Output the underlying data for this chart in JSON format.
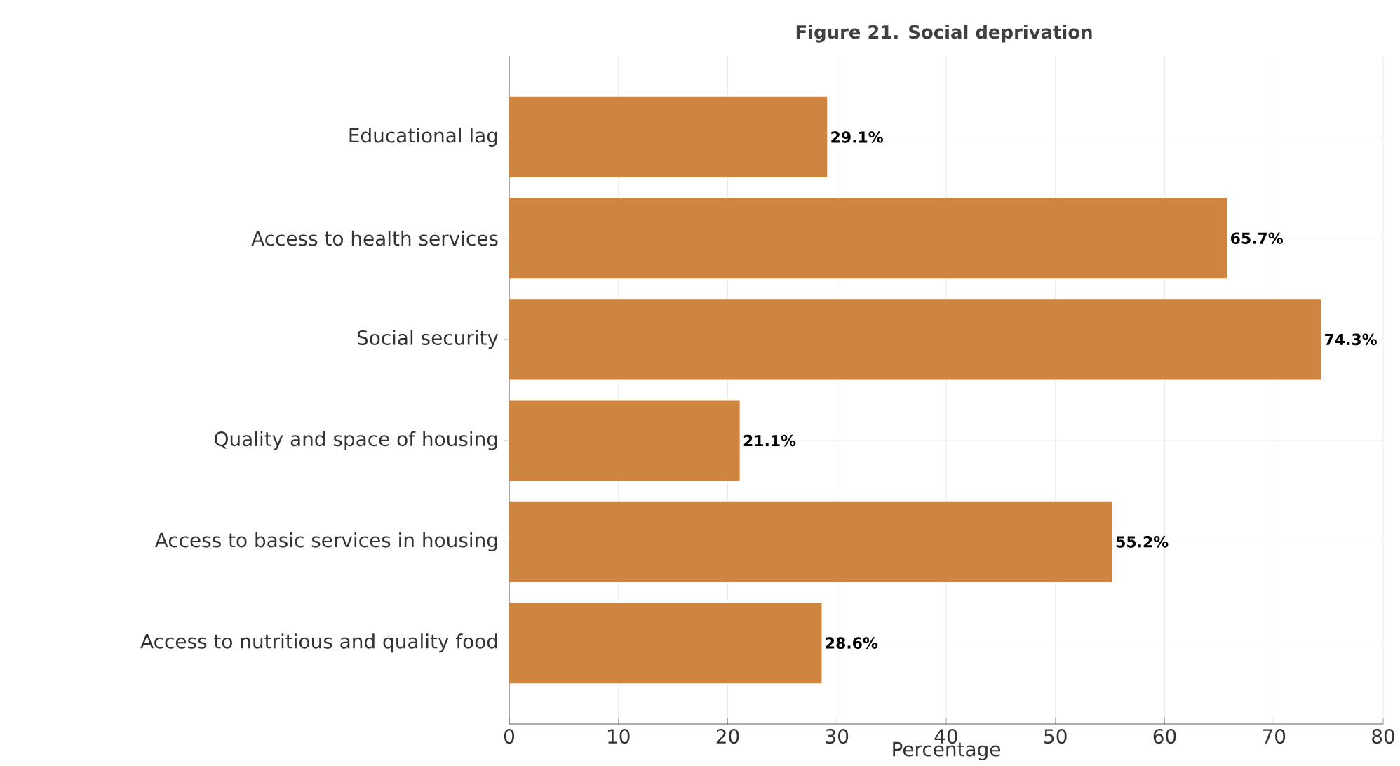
{
  "chart_data": {
    "type": "bar",
    "orientation": "horizontal",
    "title": "Figure 21. Social deprivation",
    "xlabel": "Percentage",
    "categories": [
      "Educational lag",
      "Access to health services",
      "Social security",
      "Quality and space of housing",
      "Access to basic services in housing",
      "Access to nutritious and quality food"
    ],
    "values": [
      29.1,
      65.7,
      74.3,
      21.1,
      55.2,
      28.6
    ],
    "value_labels": [
      "29.1%",
      "65.7%",
      "74.3%",
      "21.1%",
      "55.2%",
      "28.6%"
    ],
    "color": "#cd853f",
    "xlim": [
      0,
      80
    ],
    "xticks": [
      0,
      10,
      20,
      30,
      40,
      50,
      60,
      70,
      80
    ],
    "grid": true
  }
}
